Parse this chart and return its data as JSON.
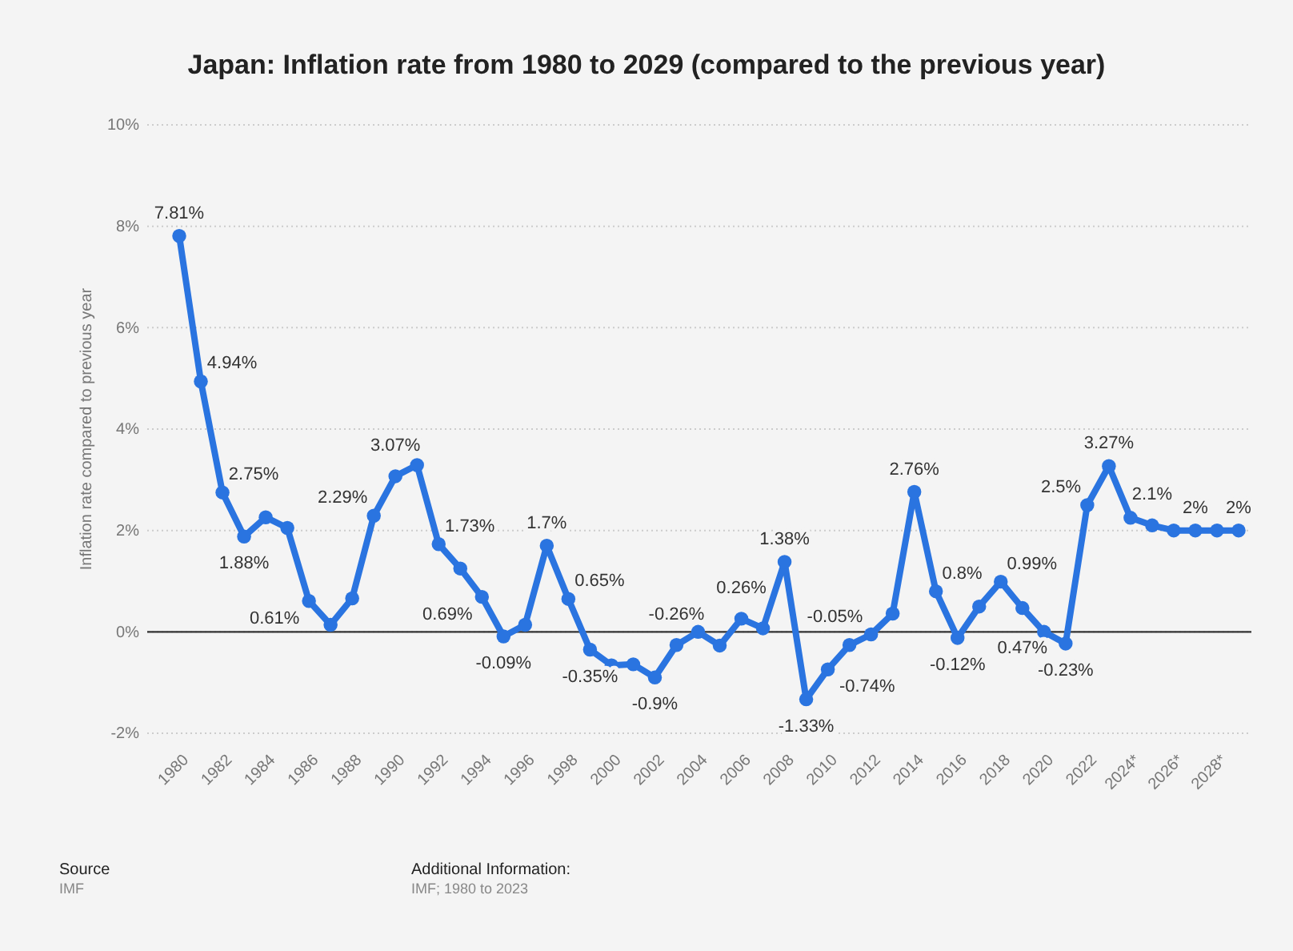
{
  "chart_data": {
    "type": "line",
    "title": "Japan: Inflation rate from 1980 to 2029 (compared to the previous year)",
    "ylabel": "Inflation rate compared to previous year",
    "categories": [
      "1980",
      null,
      "1982",
      null,
      "1984",
      null,
      "1986",
      null,
      "1988",
      null,
      "1990",
      null,
      "1992",
      null,
      "1994",
      null,
      "1996",
      null,
      "1998",
      null,
      "2000",
      null,
      "2002",
      null,
      "2004",
      null,
      "2006",
      null,
      "2008",
      null,
      "2010",
      null,
      "2012",
      null,
      "2014",
      null,
      "2016",
      null,
      "2018",
      null,
      "2020",
      null,
      "2022",
      null,
      "2024*",
      null,
      "2026*",
      null,
      "2028*",
      null
    ],
    "series": [
      {
        "color": "#2a74e0",
        "values": [
          7.81,
          4.94,
          2.75,
          1.88,
          2.26,
          2.05,
          0.61,
          0.14,
          0.66,
          2.29,
          3.07,
          3.29,
          1.73,
          1.25,
          0.69,
          -0.09,
          0.14,
          1.7,
          0.65,
          -0.35,
          -0.66,
          -0.64,
          -0.9,
          -0.26,
          0.0,
          -0.27,
          0.26,
          0.07,
          1.38,
          -1.33,
          -0.74,
          -0.26,
          -0.05,
          0.36,
          2.76,
          0.8,
          -0.12,
          0.5,
          0.99,
          0.47,
          0.0,
          -0.23,
          2.5,
          3.27,
          2.25,
          2.1,
          2.0,
          2.0,
          2.0,
          2.0
        ],
        "value_labels": [
          "7.81%",
          "4.94%",
          "2.75%",
          "1.88%",
          null,
          null,
          "0.61%",
          null,
          null,
          "2.29%",
          "3.07%",
          null,
          "1.73%",
          null,
          "0.69%",
          "-0.09%",
          null,
          "1.7%",
          "0.65%",
          "-0.35%",
          null,
          null,
          "-0.9%",
          "-0.26%",
          null,
          null,
          "0.26%",
          null,
          "1.38%",
          "-1.33%",
          "-0.74%",
          null,
          "-0.05%",
          null,
          "2.76%",
          "0.8%",
          "-0.12%",
          null,
          "0.99%",
          "0.47%",
          null,
          "-0.23%",
          "2.5%",
          "3.27%",
          null,
          "2.1%",
          null,
          "2%",
          null,
          "2%"
        ]
      }
    ],
    "ylim": [
      -2,
      10
    ],
    "yticks": [
      {
        "value": -2,
        "label": "-2%"
      },
      {
        "value": 0,
        "label": "0%"
      },
      {
        "value": 2,
        "label": "2%"
      },
      {
        "value": 4,
        "label": "4%"
      },
      {
        "value": 6,
        "label": "6%"
      },
      {
        "value": 8,
        "label": "8%"
      },
      {
        "value": 10,
        "label": "10%"
      }
    ],
    "ref_lines": [
      {
        "axis": "y",
        "value": 0,
        "color": "#333333"
      }
    ],
    "grid": "y",
    "marker": "circle",
    "line_style": "solid",
    "annotations": [
      "Source",
      "IMF",
      "Additional Information:",
      "IMF; 1980 to 2023"
    ]
  }
}
